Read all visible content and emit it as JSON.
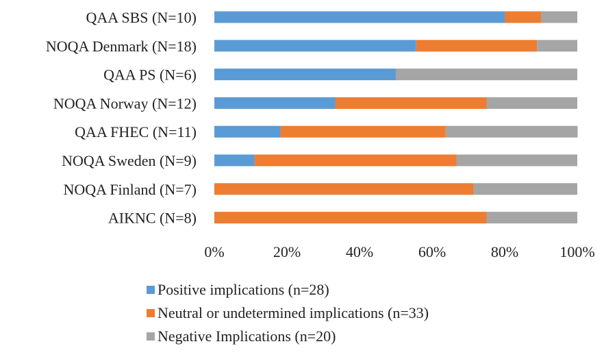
{
  "chart_data": {
    "type": "bar",
    "orientation": "horizontal",
    "stacked": "percent",
    "categories": [
      "QAA SBS (N=10)",
      "NOQA Denmark (N=18)",
      "QAA PS (N=6)",
      "NOQA Norway (N=12)",
      "QAA FHEC (N=11)",
      "NOQA Sweden (N=9)",
      "NOQA Finland (N=7)",
      "AIKNC (N=8)"
    ],
    "series": [
      {
        "name": "Positive implications (n=28)",
        "color": "#5b9bd5",
        "values": [
          80,
          55.6,
          50,
          33.3,
          18.2,
          11.1,
          0,
          0
        ]
      },
      {
        "name": "Neutral or undetermined implications (n=33)",
        "color": "#ed7d31",
        "values": [
          10,
          33.3,
          0,
          41.7,
          45.5,
          55.6,
          71.4,
          75
        ]
      },
      {
        "name": "Negative Implications (n=20)",
        "color": "#a5a5a5",
        "values": [
          10,
          11.1,
          50,
          25,
          36.4,
          33.3,
          28.6,
          25
        ]
      }
    ],
    "xticks": [
      "0%",
      "20%",
      "40%",
      "60%",
      "80%",
      "100%"
    ],
    "xlim": [
      0,
      100
    ],
    "legend_position": "bottom",
    "grid": false
  }
}
